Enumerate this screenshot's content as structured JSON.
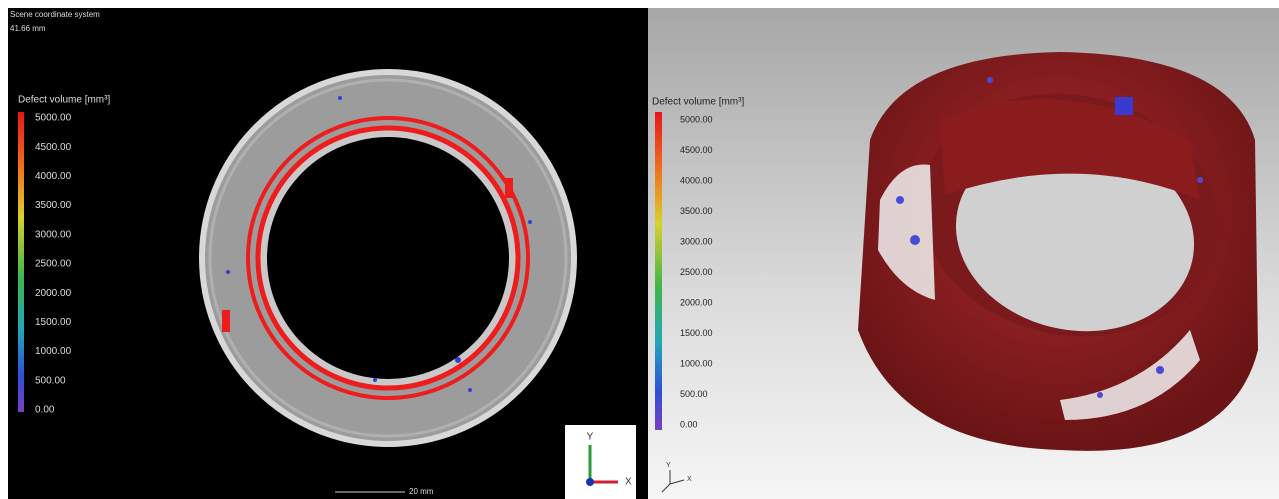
{
  "left_view": {
    "title": "Scene coordinate system",
    "measure": "41.66 mm",
    "legend": {
      "title": "Defect volume [mm³]",
      "ticks": [
        "5000.00",
        "4500.00",
        "4000.00",
        "3500.00",
        "3000.00",
        "2500.00",
        "2000.00",
        "1500.00",
        "1000.00",
        "500.00",
        "0.00"
      ]
    },
    "scale_bar": "20 mm",
    "axes": {
      "y": "Y",
      "x": "X"
    }
  },
  "right_view": {
    "legend": {
      "title": "Defect volume [mm³]",
      "ticks": [
        "5000.00",
        "4500.00",
        "4000.00",
        "3500.00",
        "3000.00",
        "2500.00",
        "2000.00",
        "1500.00",
        "1000.00",
        "500.00",
        "0.00"
      ]
    },
    "axes": {
      "y": "Y",
      "x": "X"
    }
  }
}
